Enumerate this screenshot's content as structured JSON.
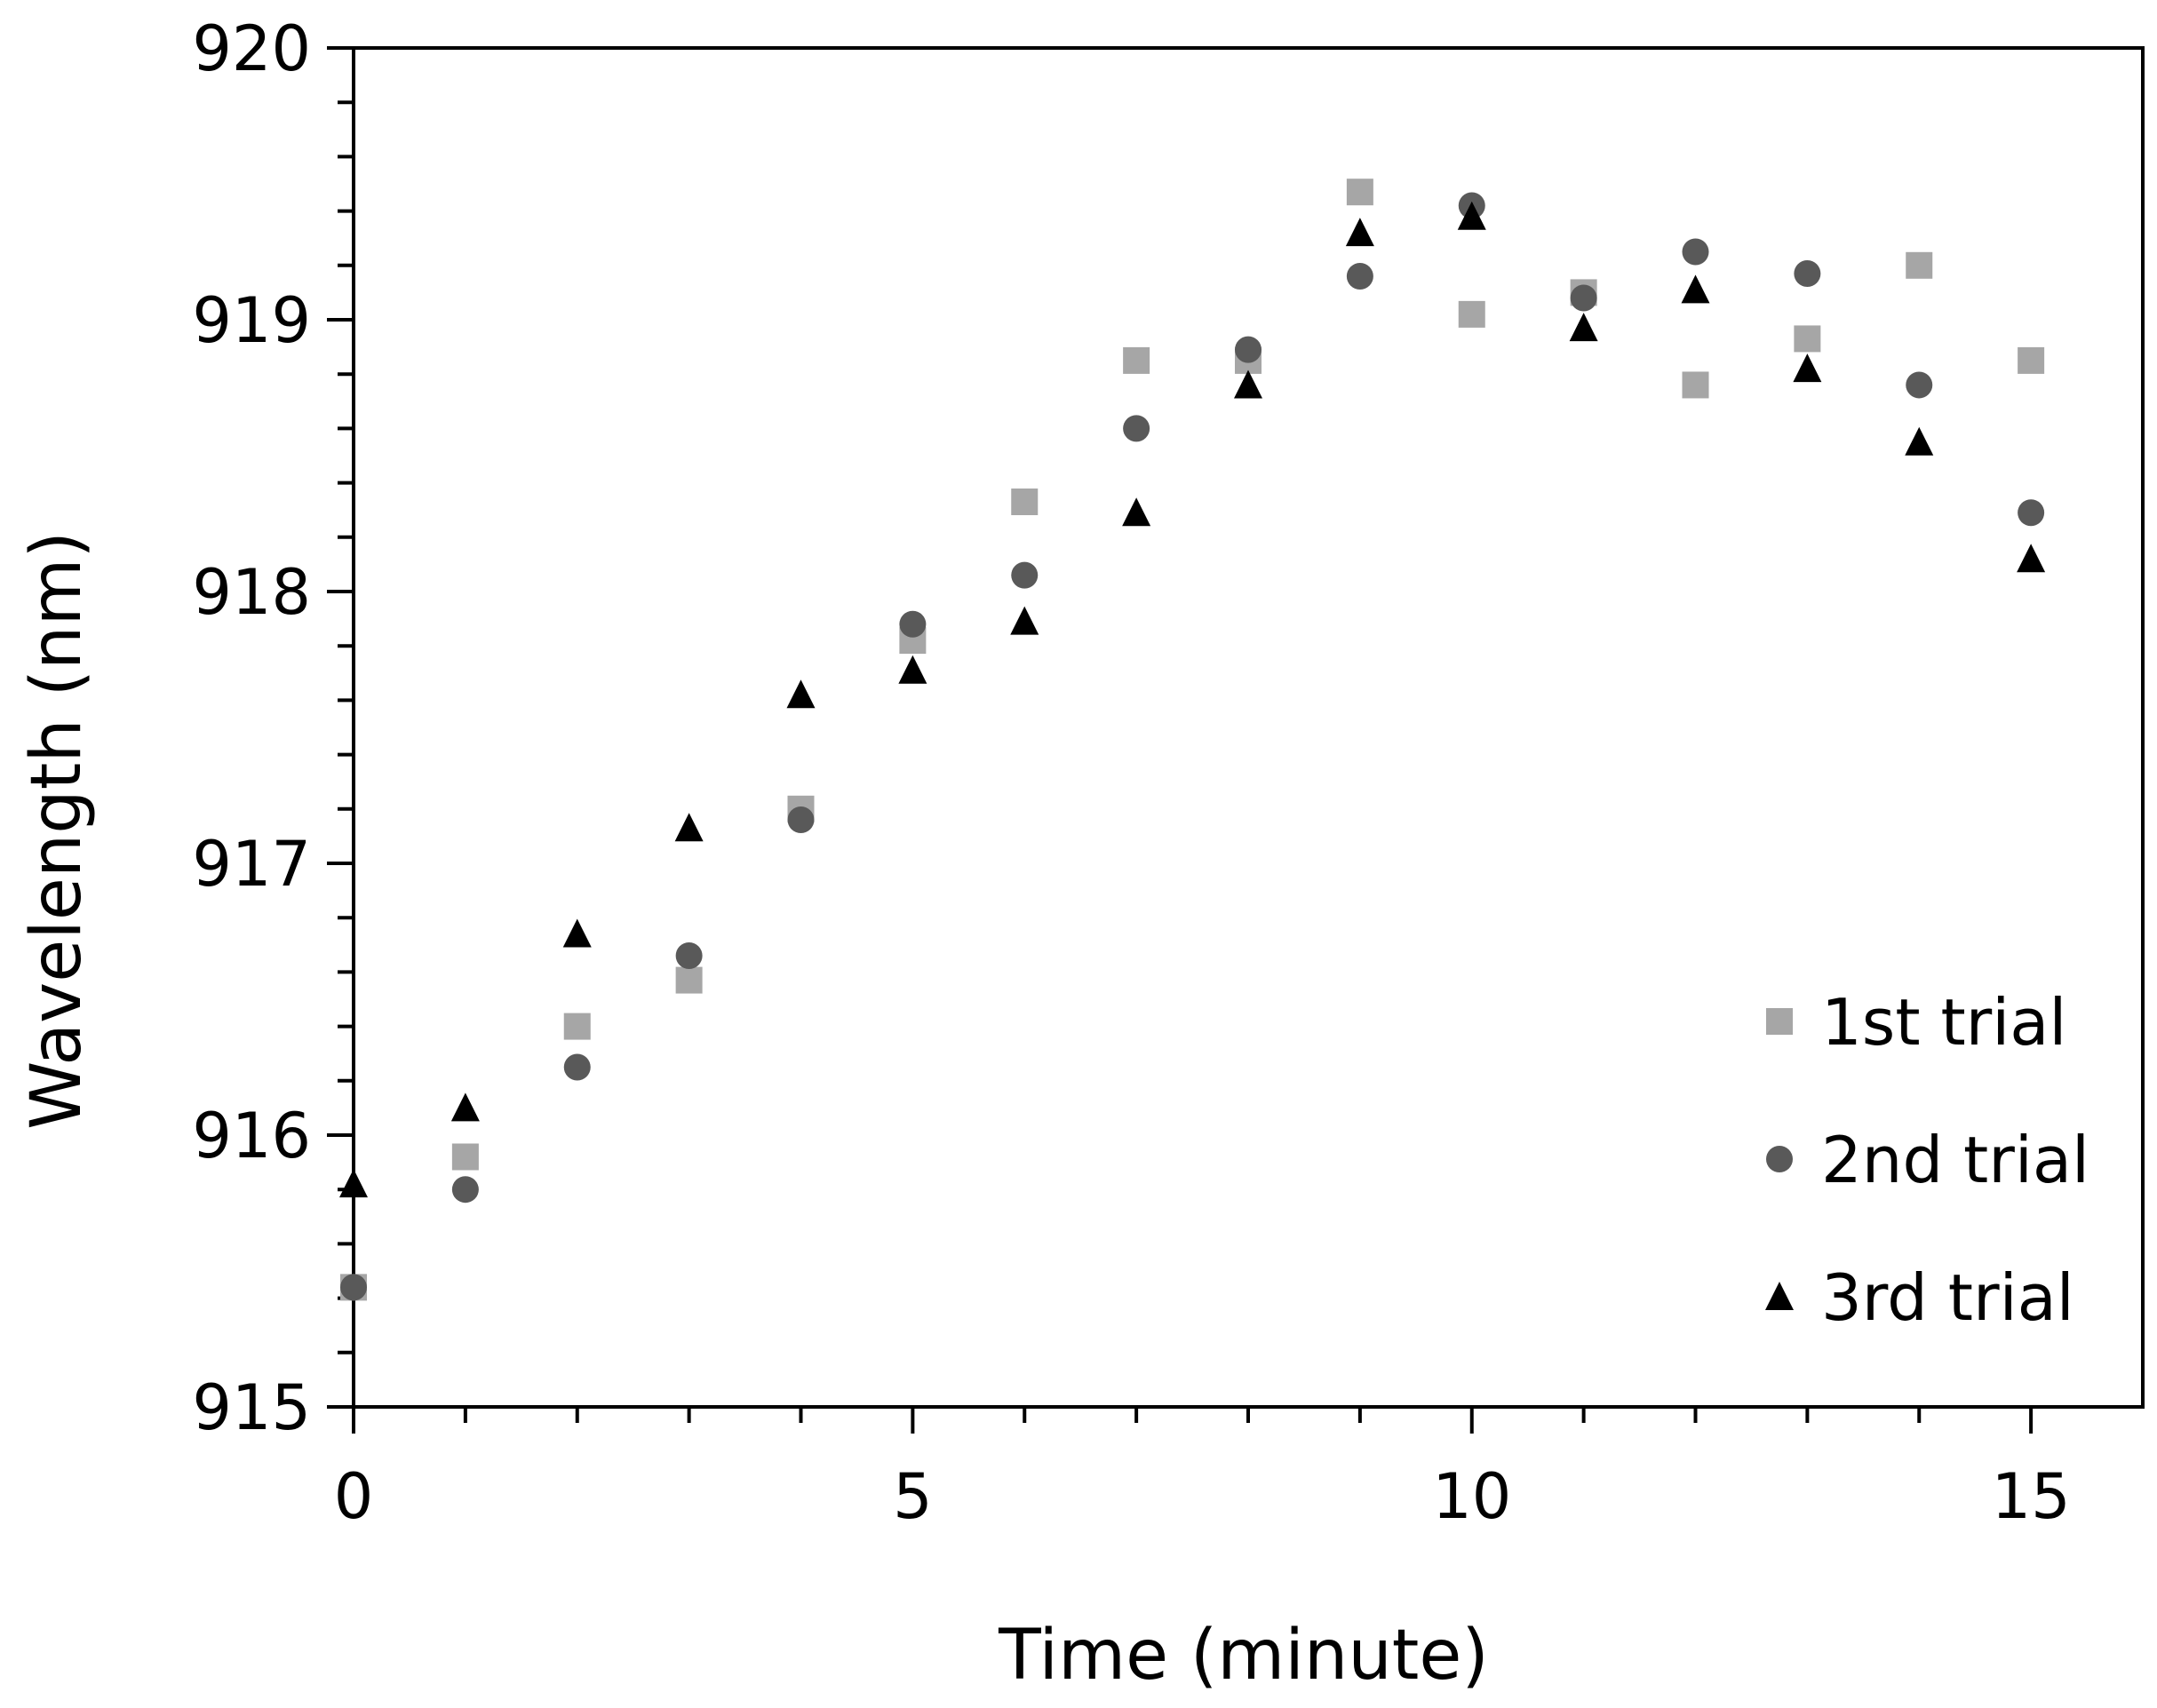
{
  "chart_data": {
    "type": "scatter",
    "title": "",
    "xlabel": "Time (minute)",
    "ylabel": "Wavelength (nm)",
    "xlim": [
      0,
      16
    ],
    "ylim": [
      915,
      920
    ],
    "x_ticks": [
      0,
      5,
      10,
      15
    ],
    "x_tick_labels": [
      "0",
      "5",
      "10",
      "15"
    ],
    "x_minor_step": 1,
    "y_ticks": [
      915,
      916,
      917,
      918,
      919,
      920
    ],
    "y_tick_labels": [
      "915",
      "916",
      "917",
      "918",
      "919",
      "920"
    ],
    "y_minor_step": 0.2,
    "grid": false,
    "legend": {
      "position": "bottom-right"
    },
    "series": [
      {
        "name": "1st trial",
        "marker": "square",
        "color": "#a6a6a6",
        "x": [
          0,
          1,
          2,
          3,
          4,
          5,
          6,
          7,
          8,
          9,
          10,
          11,
          12,
          13,
          14,
          15
        ],
        "y": [
          915.44,
          915.92,
          916.4,
          916.57,
          917.2,
          917.82,
          918.33,
          918.85,
          918.85,
          919.47,
          919.02,
          919.1,
          918.76,
          918.93,
          919.2,
          918.85
        ]
      },
      {
        "name": "2nd trial",
        "marker": "circle",
        "color": "#595959",
        "x": [
          0,
          1,
          2,
          3,
          4,
          5,
          6,
          7,
          8,
          9,
          10,
          11,
          12,
          13,
          14,
          15
        ],
        "y": [
          915.44,
          915.8,
          916.25,
          916.66,
          917.16,
          917.88,
          918.06,
          918.6,
          918.89,
          919.16,
          919.42,
          919.08,
          919.25,
          919.17,
          918.76,
          918.29
        ]
      },
      {
        "name": "3rd trial",
        "marker": "triangle",
        "color": "#000000",
        "x": [
          0,
          1,
          2,
          3,
          4,
          5,
          6,
          7,
          8,
          9,
          10,
          11,
          12,
          13,
          14,
          15
        ],
        "y": [
          915.82,
          916.1,
          916.74,
          917.13,
          917.62,
          917.71,
          917.89,
          918.29,
          918.76,
          919.32,
          919.38,
          918.97,
          919.11,
          918.82,
          918.55,
          918.12
        ]
      }
    ]
  }
}
